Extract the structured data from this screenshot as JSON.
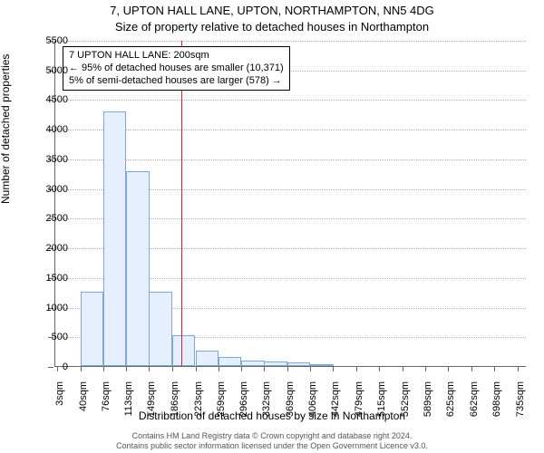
{
  "title_line1": "7, UPTON HALL LANE, UPTON, NORTHAMPTON, NN5 4DG",
  "title_line2": "Size of property relative to detached houses in Northampton",
  "yaxis_title": "Number of detached properties",
  "xaxis_title": "Distribution of detached houses by size in Northampton",
  "annotation": {
    "line1": "7 UPTON HALL LANE: 200sqm",
    "line2": "← 95% of detached houses are smaller (10,371)",
    "line3": "5% of semi-detached houses are larger (578) →"
  },
  "footer_line1": "Contains HM Land Registry data © Crown copyright and database right 2024.",
  "footer_line2": "Contains public sector information licensed under the Open Government Licence v3.0.",
  "chart": {
    "type": "histogram",
    "background_color": "#ffffff",
    "grid_color": "#b0b0b0",
    "axis_color": "#666666",
    "bar_fill": "#e6efff",
    "bar_border": "#7fa8d9",
    "ref_line_color": "#d62728",
    "ref_line_x": 200,
    "title_fontsize": 13,
    "label_fontsize": 12,
    "tick_fontsize": 11,
    "xlim": [
      0,
      750
    ],
    "ylim": [
      0,
      5500
    ],
    "ytick_step": 500,
    "bar_width_sqm": 36.6,
    "x_ticks": [
      {
        "pos": 3,
        "label": "3sqm"
      },
      {
        "pos": 40,
        "label": "40sqm"
      },
      {
        "pos": 76,
        "label": "76sqm"
      },
      {
        "pos": 113,
        "label": "113sqm"
      },
      {
        "pos": 149,
        "label": "149sqm"
      },
      {
        "pos": 186,
        "label": "186sqm"
      },
      {
        "pos": 223,
        "label": "223sqm"
      },
      {
        "pos": 259,
        "label": "259sqm"
      },
      {
        "pos": 296,
        "label": "296sqm"
      },
      {
        "pos": 332,
        "label": "332sqm"
      },
      {
        "pos": 369,
        "label": "369sqm"
      },
      {
        "pos": 406,
        "label": "406sqm"
      },
      {
        "pos": 442,
        "label": "442sqm"
      },
      {
        "pos": 479,
        "label": "479sqm"
      },
      {
        "pos": 515,
        "label": "515sqm"
      },
      {
        "pos": 552,
        "label": "552sqm"
      },
      {
        "pos": 589,
        "label": "589sqm"
      },
      {
        "pos": 625,
        "label": "625sqm"
      },
      {
        "pos": 662,
        "label": "662sqm"
      },
      {
        "pos": 698,
        "label": "698sqm"
      },
      {
        "pos": 735,
        "label": "735sqm"
      }
    ],
    "bars": [
      {
        "x0": 3,
        "value": 0
      },
      {
        "x0": 40,
        "value": 1250
      },
      {
        "x0": 76,
        "value": 4300
      },
      {
        "x0": 113,
        "value": 3280
      },
      {
        "x0": 149,
        "value": 1250
      },
      {
        "x0": 186,
        "value": 520
      },
      {
        "x0": 223,
        "value": 260
      },
      {
        "x0": 259,
        "value": 150
      },
      {
        "x0": 296,
        "value": 90
      },
      {
        "x0": 332,
        "value": 70
      },
      {
        "x0": 369,
        "value": 60
      },
      {
        "x0": 406,
        "value": 30
      },
      {
        "x0": 442,
        "value": 0
      },
      {
        "x0": 479,
        "value": 0
      },
      {
        "x0": 515,
        "value": 0
      },
      {
        "x0": 552,
        "value": 0
      },
      {
        "x0": 589,
        "value": 0
      },
      {
        "x0": 625,
        "value": 0
      },
      {
        "x0": 662,
        "value": 0
      },
      {
        "x0": 698,
        "value": 0
      }
    ]
  }
}
